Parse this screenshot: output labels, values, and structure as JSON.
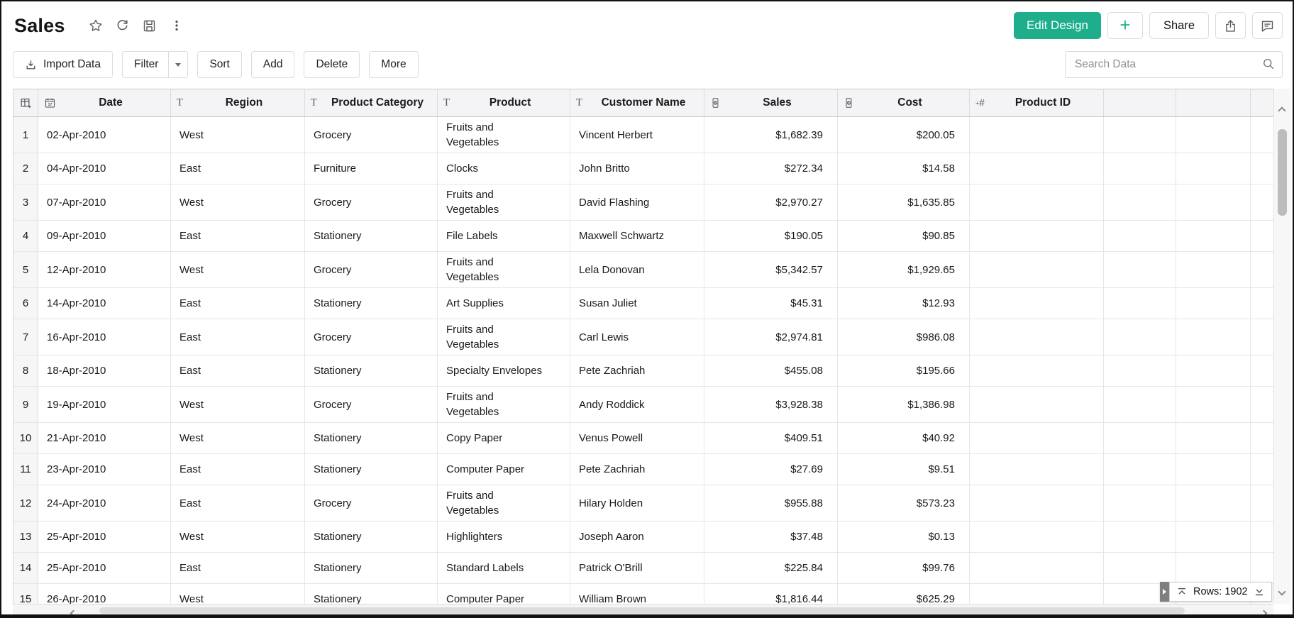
{
  "header": {
    "title": "Sales",
    "actions": {
      "edit_design": "Edit Design",
      "plus_label": "+",
      "share": "Share"
    }
  },
  "toolbar": {
    "import_data": "Import Data",
    "filter": "Filter",
    "sort": "Sort",
    "add": "Add",
    "delete": "Delete",
    "more": "More",
    "search_placeholder": "Search Data"
  },
  "table": {
    "columns": [
      {
        "label": "Date",
        "type": "date"
      },
      {
        "label": "Region",
        "type": "text"
      },
      {
        "label": "Product Category",
        "type": "text"
      },
      {
        "label": "Product",
        "type": "text"
      },
      {
        "label": "Customer Name",
        "type": "text"
      },
      {
        "label": "Sales",
        "type": "currency"
      },
      {
        "label": "Cost",
        "type": "currency"
      },
      {
        "label": "Product ID",
        "type": "number"
      }
    ],
    "rows": [
      {
        "num": "1",
        "date": "02-Apr-2010",
        "region": "West",
        "category": "Grocery",
        "product": "Fruits and Vegetables",
        "customer": "Vincent Herbert",
        "sales": "$1,682.39",
        "cost": "$200.05",
        "product_id": ""
      },
      {
        "num": "2",
        "date": "04-Apr-2010",
        "region": "East",
        "category": "Furniture",
        "product": "Clocks",
        "customer": "John Britto",
        "sales": "$272.34",
        "cost": "$14.58",
        "product_id": ""
      },
      {
        "num": "3",
        "date": "07-Apr-2010",
        "region": "West",
        "category": "Grocery",
        "product": "Fruits and Vegetables",
        "customer": "David Flashing",
        "sales": "$2,970.27",
        "cost": "$1,635.85",
        "product_id": ""
      },
      {
        "num": "4",
        "date": "09-Apr-2010",
        "region": "East",
        "category": "Stationery",
        "product": "File Labels",
        "customer": "Maxwell Schwartz",
        "sales": "$190.05",
        "cost": "$90.85",
        "product_id": ""
      },
      {
        "num": "5",
        "date": "12-Apr-2010",
        "region": "West",
        "category": "Grocery",
        "product": "Fruits and Vegetables",
        "customer": "Lela Donovan",
        "sales": "$5,342.57",
        "cost": "$1,929.65",
        "product_id": ""
      },
      {
        "num": "6",
        "date": "14-Apr-2010",
        "region": "East",
        "category": "Stationery",
        "product": "Art Supplies",
        "customer": "Susan Juliet",
        "sales": "$45.31",
        "cost": "$12.93",
        "product_id": ""
      },
      {
        "num": "7",
        "date": "16-Apr-2010",
        "region": "East",
        "category": "Grocery",
        "product": "Fruits and Vegetables",
        "customer": "Carl Lewis",
        "sales": "$2,974.81",
        "cost": "$986.08",
        "product_id": ""
      },
      {
        "num": "8",
        "date": "18-Apr-2010",
        "region": "East",
        "category": "Stationery",
        "product": "Specialty Envelopes",
        "customer": "Pete Zachriah",
        "sales": "$455.08",
        "cost": "$195.66",
        "product_id": ""
      },
      {
        "num": "9",
        "date": "19-Apr-2010",
        "region": "West",
        "category": "Grocery",
        "product": "Fruits and Vegetables",
        "customer": "Andy Roddick",
        "sales": "$3,928.38",
        "cost": "$1,386.98",
        "product_id": ""
      },
      {
        "num": "10",
        "date": "21-Apr-2010",
        "region": "West",
        "category": "Stationery",
        "product": "Copy Paper",
        "customer": "Venus Powell",
        "sales": "$409.51",
        "cost": "$40.92",
        "product_id": ""
      },
      {
        "num": "11",
        "date": "23-Apr-2010",
        "region": "East",
        "category": "Stationery",
        "product": "Computer Paper",
        "customer": "Pete Zachriah",
        "sales": "$27.69",
        "cost": "$9.51",
        "product_id": ""
      },
      {
        "num": "12",
        "date": "24-Apr-2010",
        "region": "East",
        "category": "Grocery",
        "product": "Fruits and Vegetables",
        "customer": "Hilary Holden",
        "sales": "$955.88",
        "cost": "$573.23",
        "product_id": ""
      },
      {
        "num": "13",
        "date": "25-Apr-2010",
        "region": "West",
        "category": "Stationery",
        "product": "Highlighters",
        "customer": "Joseph Aaron",
        "sales": "$37.48",
        "cost": "$0.13",
        "product_id": ""
      },
      {
        "num": "14",
        "date": "25-Apr-2010",
        "region": "East",
        "category": "Stationery",
        "product": "Standard Labels",
        "customer": "Patrick O'Brill",
        "sales": "$225.84",
        "cost": "$99.76",
        "product_id": ""
      },
      {
        "num": "15",
        "date": "26-Apr-2010",
        "region": "West",
        "category": "Stationery",
        "product": "Computer Paper",
        "customer": "William Brown",
        "sales": "$1,816.44",
        "cost": "$625.29",
        "product_id": ""
      }
    ]
  },
  "status": {
    "rows_indicator": "Rows: 1902"
  },
  "colors": {
    "accent_green": "#1EAE8C",
    "header_bg": "#f4f4f6",
    "grid_line": "#e6e6e8"
  }
}
